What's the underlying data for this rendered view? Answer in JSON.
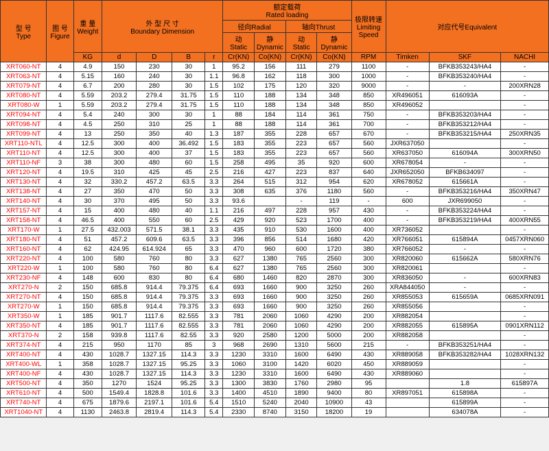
{
  "headers": {
    "type": "型 号\nType",
    "figure": "图 号\nFigure",
    "weight": "重 量\nWeight",
    "boundary": "外 型 尺 寸\nBoundary Dimension",
    "rated": "额定载荷\nRated loading",
    "radial": "径向Radial",
    "thrust": "轴向Thrust",
    "dyn": "动\nStatic",
    "sta": "静\nDynamic",
    "dyn2": "动\nStatic",
    "sta2": "静\nDynamic",
    "limit": "极限转速\nLimiting\nSpeed",
    "equiv": "对应代号Equivalent",
    "kg": "KG",
    "d": "d",
    "D": "D",
    "B": "B",
    "r": "r",
    "cr": "Cr(KN)",
    "co": "Co(KN)",
    "cr2": "Cr(KN)",
    "co2": "Co(KN)",
    "rpm": "RPM",
    "timken": "Timken",
    "skf": "SKF",
    "nachi": "NACHI"
  },
  "rows": [
    [
      "XRT060-NT",
      "4",
      "4.9",
      "150",
      "230",
      "30",
      "1",
      "95.2",
      "156",
      "111",
      "279",
      "1100",
      "-",
      "BFKB353243/HA4",
      "-"
    ],
    [
      "XRT063-NT",
      "4",
      "5.15",
      "160",
      "240",
      "30",
      "1.1",
      "96.8",
      "162",
      "118",
      "300",
      "1000",
      "-",
      "BFKB353240/HA4",
      "-"
    ],
    [
      "XRT079-NT",
      "4",
      "6.7",
      "200",
      "280",
      "30",
      "1.5",
      "102",
      "175",
      "120",
      "320",
      "9000",
      "-",
      "-",
      "200XRN28"
    ],
    [
      "XRT080-NT",
      "4",
      "5.59",
      "203.2",
      "279.4",
      "31.75",
      "1.5",
      "110",
      "188",
      "134",
      "348",
      "850",
      "XR496051",
      "616093A",
      "-"
    ],
    [
      "XRT080-W",
      "1",
      "5.59",
      "203.2",
      "279.4",
      "31.75",
      "1.5",
      "110",
      "188",
      "134",
      "348",
      "850",
      "XR496052",
      "",
      "-"
    ],
    [
      "XRT094-NT",
      "4",
      "5.4",
      "240",
      "300",
      "30",
      "1",
      "88",
      "184",
      "114",
      "361",
      "750",
      "-",
      "BFKB353203/HA4",
      "-"
    ],
    [
      "XRT098-NT",
      "4",
      "4.5",
      "250",
      "310",
      "25",
      "1",
      "88",
      "188",
      "114",
      "361",
      "700",
      "-",
      "BFKB353212/HA4",
      "-"
    ],
    [
      "XRT099-NT",
      "4",
      "13",
      "250",
      "350",
      "40",
      "1.3",
      "187",
      "355",
      "228",
      "657",
      "670",
      "-",
      "BFKB353215/HA4",
      "250XRN35"
    ],
    [
      "XRT110-NTL",
      "4",
      "12.5",
      "300",
      "400",
      "36.492",
      "1.5",
      "183",
      "355",
      "223",
      "657",
      "560",
      "JXR637050",
      "",
      "-"
    ],
    [
      "XRT110-NT",
      "4",
      "12.5",
      "300",
      "400",
      "37",
      "1.5",
      "183",
      "355",
      "223",
      "657",
      "560",
      "XR637050",
      "616094A",
      "300XRN50"
    ],
    [
      "XRT110-NF",
      "3",
      "38",
      "300",
      "480",
      "60",
      "1.5",
      "258",
      "495",
      "35",
      "920",
      "600",
      "XR678054",
      "-",
      "-"
    ],
    [
      "XRT120-NT",
      "4",
      "19.5",
      "310",
      "425",
      "45",
      "2.5",
      "216",
      "427",
      "223",
      "837",
      "640",
      "JXR652050",
      "BFKB634097",
      "-"
    ],
    [
      "XRT130-NT",
      "4",
      "32",
      "330.2",
      "457.2",
      "63.5",
      "3.3",
      "264",
      "515",
      "312",
      "954",
      "620",
      "XR678052",
      "615661A",
      "-"
    ],
    [
      "XRT138-NT",
      "4",
      "27",
      "350",
      "470",
      "50",
      "3.3",
      "308",
      "635",
      "376",
      "1180",
      "560",
      "-",
      "BFKB353216/HA4",
      "350XRN47"
    ],
    [
      "XRT140-NT",
      "4",
      "30",
      "370",
      "495",
      "50",
      "3.3",
      "93.6",
      "",
      "-",
      "119",
      "-",
      "600",
      "JXR699050",
      "-"
    ],
    [
      "XRT157-NT",
      "4",
      "15",
      "400",
      "480",
      "40",
      "1.1",
      "216",
      "497",
      "228",
      "957",
      "430",
      "-",
      "BFKB353224/HA4",
      "-"
    ],
    [
      "XRT158-NT",
      "4",
      "46.5",
      "400",
      "550",
      "60",
      "2.5",
      "429",
      "920",
      "523",
      "1700",
      "400",
      "-",
      "BFKB353219/HA4",
      "400XRN55"
    ],
    [
      "XRT170-W",
      "1",
      "27.5",
      "432.003",
      "571.5",
      "38.1",
      "3.3",
      "435",
      "910",
      "530",
      "1600",
      "400",
      "XR736052",
      "",
      "-"
    ],
    [
      "XRT180-NT",
      "4",
      "51",
      "457.2",
      "609.6",
      "63.5",
      "3.3",
      "396",
      "856",
      "514",
      "1680",
      "420",
      "XR766051",
      "615894A",
      "0457XRN060"
    ],
    [
      "XRT160-NT",
      "4",
      "62",
      "424.95",
      "614.924",
      "65",
      "3.3",
      "470",
      "960",
      "600",
      "1720",
      "380",
      "XR766052",
      "-",
      "-"
    ],
    [
      "XRT220-NT",
      "4",
      "100",
      "580",
      "760",
      "80",
      "3.3",
      "627",
      "1380",
      "765",
      "2560",
      "300",
      "XR820060",
      "615662A",
      "580XRN76"
    ],
    [
      "XRT220-W",
      "1",
      "100",
      "580",
      "760",
      "80",
      "6.4",
      "627",
      "1380",
      "765",
      "2560",
      "300",
      "XR820061",
      "",
      "-"
    ],
    [
      "XRT230-NF",
      "4",
      "148",
      "600",
      "830",
      "80",
      "6.4",
      "680",
      "1460",
      "820",
      "2870",
      "300",
      "XR836050",
      "-",
      "600XRN83"
    ],
    [
      "XRT270-N",
      "2",
      "150",
      "685.8",
      "914.4",
      "79.375",
      "6.4",
      "693",
      "1660",
      "900",
      "3250",
      "260",
      "XRA844050",
      "-",
      "-"
    ],
    [
      "XRT270-NT",
      "4",
      "150",
      "685.8",
      "914.4",
      "79.375",
      "3.3",
      "693",
      "1660",
      "900",
      "3250",
      "260",
      "XR855053",
      "615659A",
      "0685XRN091"
    ],
    [
      "XRT270-W",
      "1",
      "150",
      "685.8",
      "914.4",
      "79.375",
      "3.3",
      "693",
      "1660",
      "900",
      "3250",
      "260",
      "XR855056",
      "",
      "-"
    ],
    [
      "XRT350-W",
      "1",
      "185",
      "901.7",
      "1117.6",
      "82.555",
      "3.3",
      "781",
      "2060",
      "1060",
      "4290",
      "200",
      "XR882054",
      "",
      "-"
    ],
    [
      "XRT350-NT",
      "4",
      "185",
      "901.7",
      "1117.6",
      "82.555",
      "3.3",
      "781",
      "2060",
      "1060",
      "4290",
      "200",
      "XR882055",
      "615895A",
      "0901XRN112"
    ],
    [
      "XRT370-N",
      "2",
      "158",
      "939.8",
      "1117.6",
      "82.55",
      "3.3",
      "920",
      "2580",
      "1200",
      "5000",
      "200",
      "XR882058",
      "",
      "-"
    ],
    [
      "XRT374-NT",
      "4",
      "215",
      "950",
      "1170",
      "85",
      "3",
      "968",
      "2690",
      "1310",
      "5600",
      "215",
      "-",
      "BFKB353251/HA4",
      "-"
    ],
    [
      "XRT400-NT",
      "4",
      "430",
      "1028.7",
      "1327.15",
      "114.3",
      "3.3",
      "1230",
      "3310",
      "1600",
      "6490",
      "430",
      "XR889058",
      "BFKB353282/HA4",
      "1028XRN132"
    ],
    [
      "XRT400-WL",
      "1",
      "358",
      "1028.7",
      "1327.15",
      "95.25",
      "3.3",
      "1060",
      "3100",
      "1420",
      "6020",
      "450",
      "XR889059",
      "",
      "-"
    ],
    [
      "XRT400-NF",
      "4",
      "430",
      "1028.7",
      "1327.15",
      "114.3",
      "3.3",
      "1230",
      "3310",
      "1600",
      "6490",
      "430",
      "XR889060",
      "",
      "-"
    ],
    [
      "XRT500-NT",
      "4",
      "350",
      "1270",
      "1524",
      "95.25",
      "3.3",
      "1300",
      "3830",
      "1760",
      "2980",
      "95",
      "",
      "1.8",
      "615897A"
    ],
    [
      "XRT610-NT",
      "4",
      "500",
      "1549.4",
      "1828.8",
      "101.6",
      "3.3",
      "1400",
      "4510",
      "1890",
      "9400",
      "80",
      "XR897051",
      "615898A",
      "-"
    ],
    [
      "XRT740-NT",
      "4",
      "675",
      "1879.6",
      "2197.1",
      "101.6",
      "5.4",
      "1510",
      "5240",
      "2040",
      "10900",
      "43",
      "",
      "615899A",
      "-"
    ],
    [
      "XRT1040-NT",
      "4",
      "1130",
      "2463.8",
      "2819.4",
      "114.3",
      "5.4",
      "2330",
      "8740",
      "3150",
      "18200",
      "19",
      "",
      "634078A",
      "-"
    ]
  ]
}
